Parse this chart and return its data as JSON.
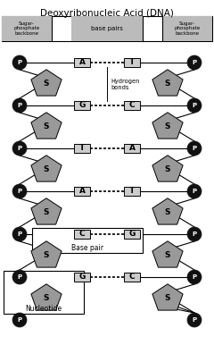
{
  "title": "Deoxyribonucleic Acid (DNA)",
  "header_labels": [
    "Sugar-\nphosphate\nbackbone",
    "base pairs",
    "Sugar-\nphosphate\nbackbone"
  ],
  "rows": [
    {
      "left": "A",
      "right": "T"
    },
    {
      "left": "G",
      "right": "C"
    },
    {
      "left": "T",
      "right": "A"
    },
    {
      "left": "A",
      "right": "T"
    },
    {
      "left": "C",
      "right": "G",
      "base_pair_label": true
    },
    {
      "left": "G",
      "right": "C",
      "nucleotide_label": true
    }
  ],
  "sugar_color": "#999999",
  "phosphate_color": "#111111",
  "base_box_color": "#cccccc",
  "header_bg": "#bbbbbb",
  "bg_color": "#ffffff",
  "hydrogen_bonds_label": "Hydrogen\nbonds"
}
